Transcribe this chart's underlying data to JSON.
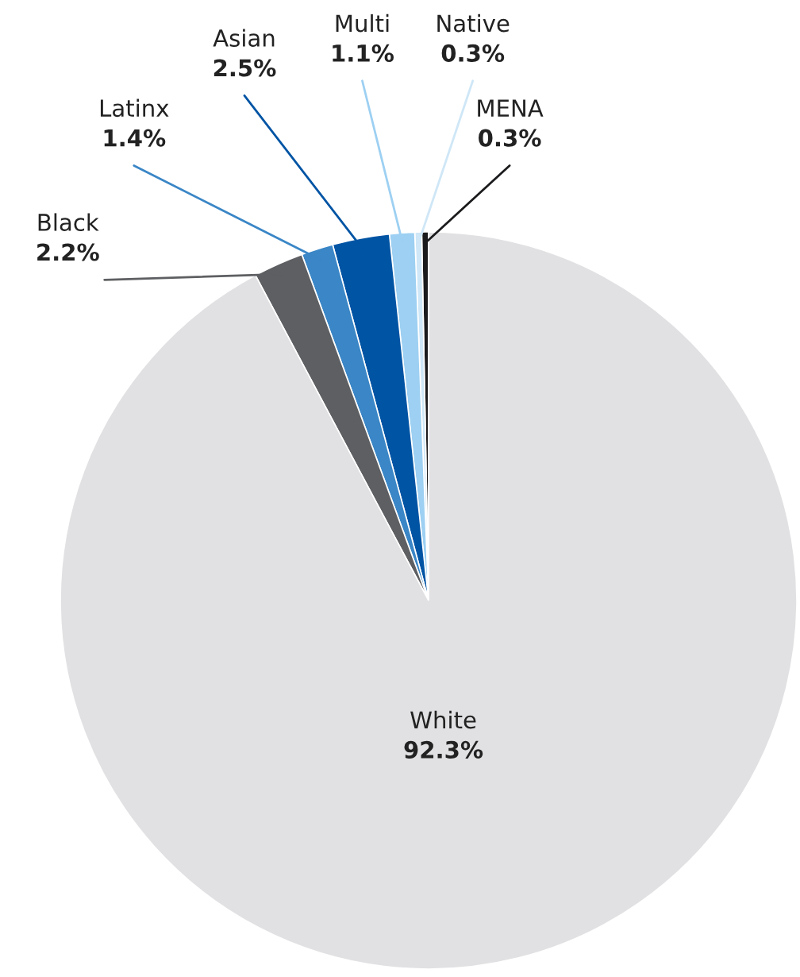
{
  "chart_data": {
    "type": "pie",
    "categories": [
      "MENA",
      "Native",
      "Multi",
      "Asian",
      "Latinx",
      "Black",
      "White"
    ],
    "values": [
      0.3,
      0.3,
      1.1,
      2.5,
      1.4,
      2.2,
      92.3
    ],
    "colors": [
      "#1b1b1d",
      "#cfe7f7",
      "#9dd0f2",
      "#0054a4",
      "#3a86c6",
      "#5e5f62",
      "#e1e1e3"
    ],
    "value_labels": [
      "0.3%",
      "0.3%",
      "1.1%",
      "2.5%",
      "1.4%",
      "2.2%",
      "92.3%"
    ],
    "legend": false
  }
}
